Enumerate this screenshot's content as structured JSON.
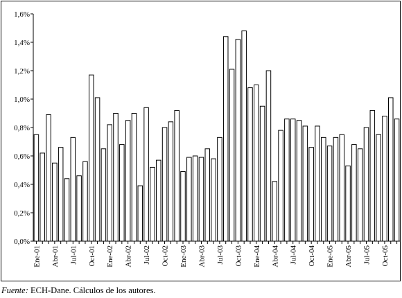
{
  "chart_data": {
    "type": "bar",
    "title": "",
    "xlabel": "",
    "ylabel": "",
    "ylim": [
      0,
      1.6
    ],
    "ytick_values": [
      0,
      0.2,
      0.4,
      0.6,
      0.8,
      1.0,
      1.2,
      1.4,
      1.6
    ],
    "ytick_labels": [
      "0,0%",
      "0,2%",
      "0,4%",
      "0,6%",
      "0,8%",
      "1,0%",
      "1,2%",
      "1,4%",
      "1,6%"
    ],
    "categories": [
      "Ene-01",
      "Feb-01",
      "Mar-01",
      "Abr-01",
      "May-01",
      "Jun-01",
      "Jul-01",
      "Ago-01",
      "Sep-01",
      "Oct-01",
      "Nov-01",
      "Dic-01",
      "Ene-02",
      "Feb-02",
      "Mar-02",
      "Abr-02",
      "May-02",
      "Jun-02",
      "Jul-02",
      "Ago-02",
      "Sep-02",
      "Oct-02",
      "Nov-02",
      "Dic-02",
      "Ene-03",
      "Feb-03",
      "Mar-03",
      "Abr-03",
      "May-03",
      "Jun-03",
      "Jul-03",
      "Ago-03",
      "Sep-03",
      "Oct-03",
      "Nov-03",
      "Dic-03",
      "Ene-04",
      "Feb-04",
      "Mar-04",
      "Abr-04",
      "May-04",
      "Jun-04",
      "Jul-04",
      "Ago-04",
      "Sep-04",
      "Oct-04",
      "Nov-04",
      "Dic-04",
      "Ene-05",
      "Feb-05",
      "Mar-05",
      "Abr-05",
      "May-05",
      "Jun-05",
      "Jul-05",
      "Ago-05",
      "Sep-05",
      "Oct-05",
      "Nov-05",
      "Dic-05"
    ],
    "shown_tick_labels": [
      "Ene-01",
      "Abr-01",
      "Jul-01",
      "Oct-01",
      "Ene-02",
      "Abr-02",
      "Jul-02",
      "Oct-02",
      "Ene-03",
      "Abr-03",
      "Jul-03",
      "Oct-03",
      "Ene-04",
      "Abr-04",
      "Jul-04",
      "Oct-04",
      "Ene-05",
      "Abr-05",
      "Jul-05",
      "Oct-05"
    ],
    "values": [
      0.75,
      0.62,
      0.89,
      0.55,
      0.66,
      0.44,
      0.73,
      0.46,
      0.56,
      1.17,
      1.01,
      0.65,
      0.82,
      0.9,
      0.68,
      0.85,
      0.9,
      0.39,
      0.94,
      0.52,
      0.57,
      0.8,
      0.84,
      0.92,
      0.49,
      0.59,
      0.6,
      0.59,
      0.65,
      0.58,
      0.73,
      1.44,
      1.21,
      1.42,
      1.48,
      1.08,
      1.1,
      0.95,
      1.2,
      0.42,
      0.78,
      0.86,
      0.86,
      0.85,
      0.81,
      0.66,
      0.81,
      0.73,
      0.67,
      0.73,
      0.75,
      0.53,
      0.68,
      0.65,
      0.8,
      0.92,
      0.75,
      0.88,
      1.01,
      0.86
    ],
    "grid": false,
    "legend": "none",
    "bar_fill": "#ffffff",
    "bar_stroke": "#000000"
  },
  "footnote": {
    "source_label": "Fuente:",
    "source_text": "ECH-Dane. Cálculos de los autores."
  }
}
